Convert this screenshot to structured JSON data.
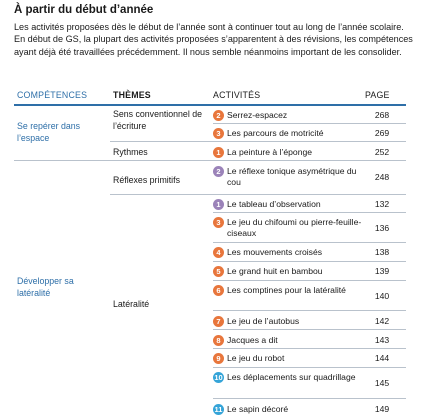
{
  "section": {
    "heading": "À partir du début d’année",
    "intro": "Les activités proposées dès le début de l’année sont à continuer tout au long de l’année scolaire. En début de GS, la plupart des activités proposées s’apparentent à des révisions, les compétences ayant déjà été travaillées précédemment. Il nous semble néanmoins important de les consolider."
  },
  "table": {
    "headers": {
      "competences": "COMPÉTENCES",
      "themes": "THÈMES",
      "activites": "ACTIVITÉS",
      "page": "PAGE"
    },
    "competences": [
      "Se repérer dans l’espace",
      "Développer sa latéralité"
    ],
    "themes": [
      "Sens conventionnel de l’écriture",
      "Rythmes",
      "Réflexes primitifs",
      "Latéralité"
    ],
    "colors": {
      "orange": "#e8763c",
      "purple": "#9b83b9",
      "blue": "#35a4d8",
      "accent": "#2e6fa8"
    },
    "activities": [
      {
        "num": "2",
        "color": "orange",
        "label": "Serrez-espacez",
        "page": "268"
      },
      {
        "num": "3",
        "color": "orange",
        "label": "Les parcours de motricité",
        "page": "269"
      },
      {
        "num": "1",
        "color": "orange",
        "label": "La peinture à l’éponge",
        "page": "252"
      },
      {
        "num": "2",
        "color": "purple",
        "label": "Le réflexe tonique asymétrique du cou",
        "page": "248"
      },
      {
        "num": "1",
        "color": "purple",
        "label": "Le tableau d’observation",
        "page": "132"
      },
      {
        "num": "3",
        "color": "orange",
        "label": "Le jeu du chifoumi ou pierre-feuille-ciseaux",
        "page": "136"
      },
      {
        "num": "4",
        "color": "orange",
        "label": "Les mouvements croisés",
        "page": "138"
      },
      {
        "num": "5",
        "color": "orange",
        "label": "Le grand huit en bambou",
        "page": "139"
      },
      {
        "num": "6",
        "color": "orange",
        "label": "Les comptines pour la latéralité",
        "page": "140"
      },
      {
        "num": "7",
        "color": "orange",
        "label": "Le jeu de l’autobus",
        "page": "142"
      },
      {
        "num": "8",
        "color": "orange",
        "label": "Jacques a dit",
        "page": "143"
      },
      {
        "num": "9",
        "color": "orange",
        "label": "Le jeu du robot",
        "page": "144"
      },
      {
        "num": "10",
        "color": "blue",
        "label": "Les déplacements sur quadrillage",
        "page": "145"
      },
      {
        "num": "11",
        "color": "blue",
        "label": "Le sapin décoré",
        "page": "149"
      }
    ]
  }
}
